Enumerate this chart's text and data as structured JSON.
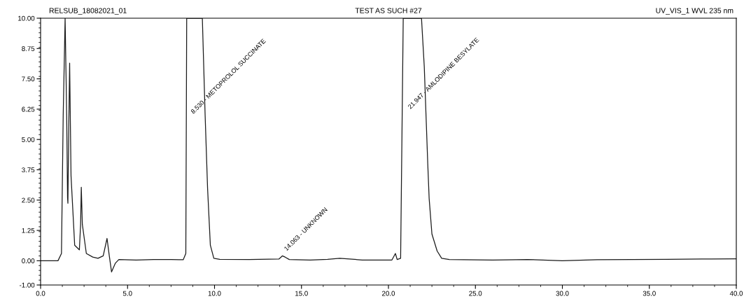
{
  "chart_data": {
    "type": "line",
    "title": "TEST AS SUCH #27",
    "x": [
      0.0,
      1.0,
      1.2,
      1.3,
      1.41,
      1.5,
      1.55,
      1.57,
      1.62,
      1.67,
      1.75,
      1.96,
      2.23,
      2.3,
      2.34,
      2.4,
      2.63,
      3.0,
      3.3,
      3.6,
      3.82,
      3.95,
      4.08,
      4.3,
      4.5,
      5.5,
      6.5,
      7.5,
      8.2,
      8.35,
      8.4,
      8.5,
      9.3,
      9.46,
      9.6,
      9.76,
      9.96,
      10.3,
      12.0,
      13.7,
      13.9,
      14.06,
      14.3,
      15.5,
      16.5,
      17.2,
      18.5,
      20.2,
      20.4,
      20.5,
      20.7,
      20.85,
      21.9,
      22.06,
      22.26,
      22.34,
      22.5,
      22.8,
      23.06,
      23.5,
      26.0,
      28.0,
      30.0,
      32.0,
      34.0,
      36.0,
      38.0,
      40.0
    ],
    "series": [
      {
        "color": "#1a1a1a",
        "values": [
          0.0,
          0.0,
          0.3,
          6.0,
          10.0,
          6.0,
          2.6,
          2.37,
          5.5,
          8.15,
          3.5,
          0.64,
          0.45,
          1.5,
          3.03,
          1.5,
          0.3,
          0.15,
          0.1,
          0.2,
          0.92,
          0.2,
          -0.46,
          -0.1,
          0.05,
          0.03,
          0.05,
          0.05,
          0.04,
          0.3,
          10.0,
          10.0,
          10.0,
          6.0,
          3.0,
          0.64,
          0.1,
          0.06,
          0.05,
          0.07,
          0.2,
          0.15,
          0.05,
          0.03,
          0.06,
          0.1,
          0.03,
          0.03,
          0.3,
          0.05,
          0.1,
          10.0,
          10.0,
          8.0,
          4.0,
          2.57,
          1.1,
          0.4,
          0.1,
          0.05,
          0.03,
          0.05,
          0.0,
          0.04,
          0.05,
          0.06,
          0.07,
          0.08
        ]
      }
    ],
    "xlim": [
      0,
      40
    ],
    "ylim": [
      -1,
      10
    ],
    "xticks": [
      {
        "value": 0,
        "label": "0.0"
      },
      {
        "value": 5,
        "label": "5.0"
      },
      {
        "value": 10,
        "label": "10.0"
      },
      {
        "value": 15,
        "label": "15.0"
      },
      {
        "value": 20,
        "label": "20.0"
      },
      {
        "value": 25,
        "label": "25.0"
      },
      {
        "value": 30,
        "label": "30.0"
      },
      {
        "value": 35,
        "label": "35.0"
      },
      {
        "value": 40,
        "label": "40.0"
      }
    ],
    "yticks": [
      {
        "value": -1,
        "label": "-1.00"
      },
      {
        "value": 0,
        "label": "0.00"
      },
      {
        "value": 1.25,
        "label": "1.25"
      },
      {
        "value": 2.5,
        "label": "2.50"
      },
      {
        "value": 3.75,
        "label": "3.75"
      },
      {
        "value": 5,
        "label": "5.00"
      },
      {
        "value": 6.25,
        "label": "6.25"
      },
      {
        "value": 7.5,
        "label": "7.50"
      },
      {
        "value": 8.75,
        "label": "8.75"
      },
      {
        "value": 10,
        "label": "10.00"
      }
    ],
    "grid": false,
    "legend": false,
    "marker": "none",
    "line_style": "solid",
    "annotations": [
      "RELSUB_18082021_01",
      "UV_VIS_1 WVL 235 nm",
      "8.530 - METOPROLOL SUCCINATE",
      "14.063 - UNKNOWN",
      "21.947 - AMLODIPINE BESYLATE"
    ]
  }
}
